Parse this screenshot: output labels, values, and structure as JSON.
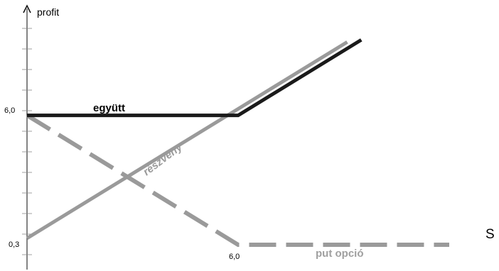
{
  "chart_data": {
    "type": "line",
    "ylabel": "profit",
    "xlabel": "S",
    "y_tick_labels": [
      {
        "value": 6.0,
        "label": "6,0"
      },
      {
        "value": 0.3,
        "label": "0,3"
      }
    ],
    "x_tick_labels": [
      {
        "value": 6.0,
        "label": "6,0"
      }
    ],
    "series": [
      {
        "name": "részvény",
        "color": "#9a9a9a",
        "style": "solid",
        "points": [
          [
            0,
            0.3
          ],
          [
            6.0,
            6.3
          ],
          [
            9.1,
            9.4
          ]
        ]
      },
      {
        "name": "együtt",
        "color": "#1a1a1a",
        "style": "solid",
        "points": [
          [
            0,
            6.0
          ],
          [
            6.0,
            6.0
          ],
          [
            9.5,
            9.5
          ]
        ]
      },
      {
        "name": "put opció",
        "color": "#9a9a9a",
        "style": "dashed",
        "points": [
          [
            0,
            6.0
          ],
          [
            6.0,
            0.0
          ],
          [
            12.0,
            0.0
          ]
        ]
      }
    ]
  }
}
